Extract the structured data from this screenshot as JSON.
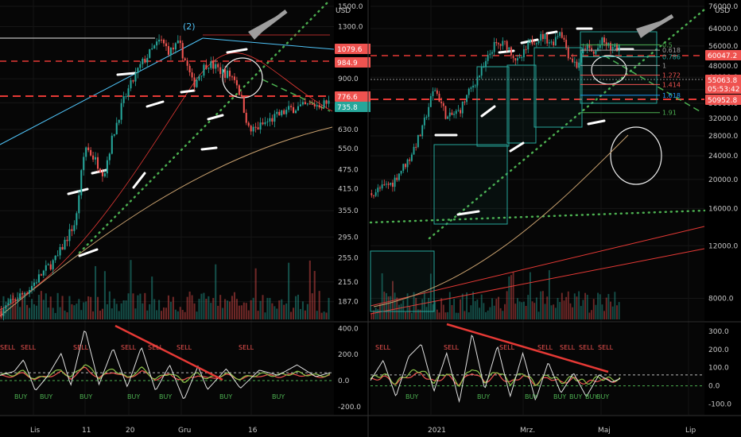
{
  "chart_data": [
    {
      "type": "candlestick",
      "currency": "USD",
      "y_scale": "log",
      "ylim": [
        165,
        1500
      ],
      "y_ticks": [
        1500.0,
        1300.0,
        900.0,
        760.0,
        630.0,
        550.0,
        475.0,
        415.0,
        355.0,
        295.0,
        255.0,
        215.0,
        187.0
      ],
      "x_labels": [
        "Lis",
        "11",
        "20",
        "Gru",
        "16"
      ],
      "wave_label": "(2)",
      "price_tags": [
        {
          "value": "1079.6",
          "color": "#ef5350"
        },
        {
          "value": "984.9",
          "color": "#ef5350"
        },
        {
          "value": "776.6",
          "color": "#ef5350"
        },
        {
          "value": "735.8",
          "color": "#26a69a"
        }
      ],
      "trend": [
        [
          0,
          175
        ],
        [
          12,
          205
        ],
        [
          24,
          255
        ],
        [
          32,
          330
        ],
        [
          36,
          560
        ],
        [
          44,
          460
        ],
        [
          52,
          760
        ],
        [
          60,
          1000
        ],
        [
          68,
          1180
        ],
        [
          72,
          1090
        ],
        [
          76,
          1150
        ],
        [
          82,
          860
        ],
        [
          88,
          1010
        ],
        [
          94,
          950
        ],
        [
          100,
          905
        ],
        [
          106,
          620
        ],
        [
          110,
          640
        ],
        [
          116,
          680
        ],
        [
          124,
          730
        ],
        [
          140,
          760
        ]
      ],
      "oscillator": {
        "ylim": [
          -250,
          420
        ],
        "y_ticks": [
          400.0,
          200.0,
          0.0,
          -200.0
        ],
        "white": [
          [
            0,
            40
          ],
          [
            6,
            70
          ],
          [
            10,
            160
          ],
          [
            15,
            -80
          ],
          [
            20,
            30
          ],
          [
            26,
            210
          ],
          [
            30,
            -40
          ],
          [
            36,
            400
          ],
          [
            42,
            -30
          ],
          [
            48,
            250
          ],
          [
            54,
            -50
          ],
          [
            60,
            260
          ],
          [
            66,
            -80
          ],
          [
            72,
            120
          ],
          [
            78,
            -150
          ],
          [
            84,
            110
          ],
          [
            88,
            -70
          ],
          [
            96,
            90
          ],
          [
            102,
            -60
          ],
          [
            110,
            80
          ],
          [
            118,
            40
          ],
          [
            126,
            120
          ],
          [
            134,
            30
          ],
          [
            140,
            60
          ]
        ],
        "sell": [
          "SELL",
          "SELL",
          "SELL",
          "SELL",
          "SELL",
          "SELL",
          "SELL"
        ],
        "buy": [
          "BUY",
          "BUY",
          "BUY",
          "BUY",
          "BUY",
          "BUY",
          "BUY"
        ]
      }
    },
    {
      "type": "candlestick",
      "currency": "USD",
      "y_scale": "log",
      "ylim": [
        6800,
        76000
      ],
      "y_ticks": [
        76000.0,
        64000.0,
        56000.0,
        48000.0,
        44000.0,
        40000.0,
        36000.0,
        32000.0,
        28000.0,
        24000.0,
        20000.0,
        16000.0,
        12000.0,
        8000.0
      ],
      "x_labels": [
        "2021",
        "Mrz.",
        "Maj",
        "Lip"
      ],
      "price_tags": [
        {
          "value": "60047.2",
          "color": "#ef5350"
        },
        {
          "value": "55063.8",
          "color": "#ef5350"
        },
        {
          "value": "05:53:42",
          "color": "#ef5350"
        },
        {
          "value": "50952.8",
          "color": "#ef5350"
        }
      ],
      "fib_levels": [
        {
          "label": "0.5",
          "value": 56500,
          "color": "#4caf50"
        },
        {
          "label": "0.618",
          "value": 54200,
          "color": "#9e9e9e"
        },
        {
          "label": "0.786",
          "value": 51500,
          "color": "#26a69a"
        },
        {
          "label": "1",
          "value": 48200,
          "color": "#9e9e9e"
        },
        {
          "label": "1.272",
          "value": 44700,
          "color": "#ef5350"
        },
        {
          "label": "1.414",
          "value": 41600,
          "color": "#ef5350"
        },
        {
          "label": "1.618",
          "value": 38300,
          "color": "#2196f3"
        },
        {
          "label": "1.91",
          "value": 33500,
          "color": "#4caf50"
        }
      ],
      "trend": [
        [
          0,
          18000
        ],
        [
          10,
          19500
        ],
        [
          18,
          23500
        ],
        [
          24,
          29000
        ],
        [
          30,
          40500
        ],
        [
          36,
          32000
        ],
        [
          42,
          34000
        ],
        [
          48,
          41000
        ],
        [
          54,
          48000
        ],
        [
          58,
          56000
        ],
        [
          64,
          57000
        ],
        [
          70,
          49000
        ],
        [
          76,
          58000
        ],
        [
          82,
          60500
        ],
        [
          86,
          57000
        ],
        [
          90,
          63500
        ],
        [
          94,
          52000
        ],
        [
          98,
          48000
        ],
        [
          102,
          56000
        ],
        [
          106,
          52500
        ],
        [
          110,
          58000
        ],
        [
          114,
          55000
        ],
        [
          118,
          55100
        ]
      ],
      "oscillator": {
        "ylim": [
          -150,
          330
        ],
        "y_ticks": [
          300.0,
          200.0,
          100.0,
          0.0,
          -100.0
        ],
        "white": [
          [
            0,
            30
          ],
          [
            6,
            140
          ],
          [
            12,
            -60
          ],
          [
            18,
            160
          ],
          [
            24,
            230
          ],
          [
            30,
            -30
          ],
          [
            36,
            180
          ],
          [
            42,
            -90
          ],
          [
            48,
            290
          ],
          [
            54,
            -20
          ],
          [
            60,
            220
          ],
          [
            66,
            -60
          ],
          [
            72,
            180
          ],
          [
            78,
            -80
          ],
          [
            84,
            130
          ],
          [
            90,
            -40
          ],
          [
            96,
            70
          ],
          [
            102,
            -60
          ],
          [
            108,
            60
          ],
          [
            114,
            20
          ],
          [
            118,
            40
          ]
        ],
        "sell": [
          "SELL",
          "SELL",
          "SELL",
          "SELL",
          "SELL",
          "SELL",
          "SELL"
        ],
        "buy": [
          "BUY",
          "BUY",
          "BUY",
          "BUY",
          "BUY",
          "BUY",
          "BUY"
        ]
      }
    }
  ]
}
